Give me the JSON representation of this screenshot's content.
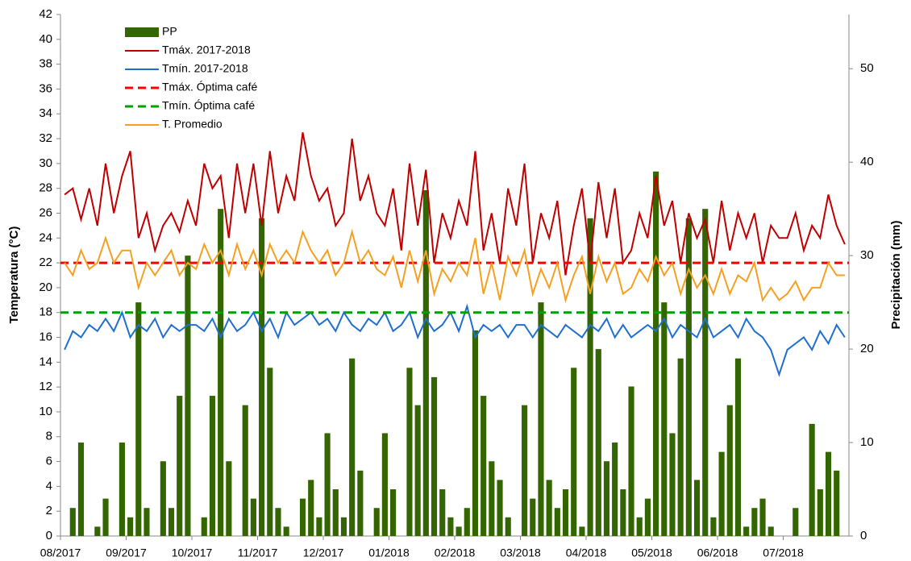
{
  "chart_data": {
    "type": "combo",
    "y_label": "Temperatura (°C)",
    "y2_label": "Precipitación (mm)",
    "ylim": [
      0,
      42
    ],
    "yticks": [
      0,
      2,
      4,
      6,
      8,
      10,
      12,
      14,
      16,
      18,
      20,
      22,
      24,
      26,
      28,
      30,
      32,
      34,
      36,
      38,
      40,
      42
    ],
    "y2lim": [
      0,
      55.8
    ],
    "y2ticks": [
      0,
      10,
      20,
      30,
      40,
      50
    ],
    "legend": "top-left",
    "categories": [
      "08/2017",
      null,
      null,
      null,
      null,
      null,
      null,
      null,
      "09/2017",
      null,
      null,
      null,
      null,
      null,
      null,
      null,
      "10/2017",
      null,
      null,
      null,
      null,
      null,
      null,
      null,
      "11/2017",
      null,
      null,
      null,
      null,
      null,
      null,
      null,
      "12/2017",
      null,
      null,
      null,
      null,
      null,
      null,
      null,
      "01/2018",
      null,
      null,
      null,
      null,
      null,
      null,
      null,
      "02/2018",
      null,
      null,
      null,
      null,
      null,
      null,
      null,
      "03/2018",
      null,
      null,
      null,
      null,
      null,
      null,
      null,
      "04/2018",
      null,
      null,
      null,
      null,
      null,
      null,
      null,
      "05/2018",
      null,
      null,
      null,
      null,
      null,
      null,
      null,
      "06/2018",
      null,
      null,
      null,
      null,
      null,
      null,
      null,
      "07/2018",
      null,
      null,
      null,
      null,
      null,
      null,
      null
    ],
    "series": [
      {
        "name": "PP",
        "type": "bar",
        "axis": "y2",
        "color": "#336600",
        "values": [
          0,
          3,
          10,
          0,
          1,
          4,
          0,
          10,
          2,
          25,
          3,
          0,
          8,
          3,
          15,
          30,
          0,
          2,
          15,
          35,
          8,
          0,
          14,
          4,
          34,
          18,
          3,
          1,
          0,
          4,
          6,
          2,
          11,
          5,
          2,
          19,
          7,
          0,
          3,
          11,
          5,
          0,
          18,
          14,
          37,
          17,
          5,
          2,
          1,
          3,
          22,
          15,
          8,
          6,
          2,
          0,
          14,
          4,
          25,
          6,
          3,
          5,
          18,
          1,
          34,
          20,
          8,
          10,
          5,
          16,
          2,
          4,
          39,
          25,
          11,
          19,
          34,
          6,
          35,
          2,
          9,
          14,
          19,
          1,
          3,
          4,
          1,
          0,
          0,
          3,
          0,
          12,
          5,
          9,
          7,
          0
        ]
      },
      {
        "name": "Tmáx. 2017-2018",
        "type": "line",
        "color": "#c00000",
        "values": [
          27.5,
          28,
          25.5,
          28,
          25,
          30,
          26,
          29,
          31,
          24,
          26,
          23,
          25,
          26,
          24.5,
          27,
          25,
          30,
          28,
          29,
          24,
          30,
          26,
          30,
          25,
          31,
          26,
          29,
          27,
          32.5,
          29,
          27,
          28,
          25,
          26,
          32,
          27,
          29,
          26,
          25,
          28,
          23,
          30,
          25,
          29.5,
          22,
          26,
          24,
          27,
          25,
          31,
          23,
          26,
          22,
          28,
          25,
          30,
          22,
          26,
          24,
          27,
          21,
          25,
          28,
          22,
          28.5,
          24,
          28,
          22,
          23,
          26,
          24,
          29,
          25,
          27,
          22,
          26,
          24,
          25.5,
          22,
          27,
          23,
          26,
          24,
          26,
          22,
          25,
          24,
          24,
          26,
          23,
          25,
          24,
          27.5,
          25,
          23.5
        ]
      },
      {
        "name": "Tmín. 2017-2018",
        "type": "line",
        "color": "#1f6fd0",
        "values": [
          15,
          16.5,
          16,
          17,
          16.5,
          17.5,
          16.5,
          18,
          16,
          17,
          16.5,
          17.5,
          16,
          17,
          16.5,
          17,
          17,
          16.5,
          17.5,
          16,
          17.5,
          16.5,
          17,
          18,
          16.5,
          17.5,
          16,
          18,
          17,
          17.5,
          18,
          17,
          17.5,
          16.5,
          18,
          17,
          16.5,
          17.5,
          17,
          18,
          16.5,
          17,
          18,
          16,
          17.5,
          16.5,
          17,
          18,
          16.5,
          18.5,
          16,
          17,
          16.5,
          17,
          16,
          17,
          17,
          16,
          17,
          16.5,
          16,
          17,
          16.5,
          16,
          17,
          16.5,
          17.5,
          16,
          17,
          16,
          16.5,
          17,
          16.5,
          17.5,
          16,
          17,
          16.5,
          16,
          17.5,
          16,
          16.5,
          17,
          16,
          17.5,
          16.5,
          16,
          15,
          13,
          15,
          15.5,
          16,
          15,
          16.5,
          15.5,
          17,
          16
        ]
      },
      {
        "name": "Tmáx. Óptima café",
        "type": "hline",
        "color": "#ff0000",
        "value": 22
      },
      {
        "name": "Tmín. Óptima café",
        "type": "hline",
        "color": "#00a000",
        "value": 18
      },
      {
        "name": "T. Promedio",
        "type": "line",
        "color": "#f5a020",
        "values": [
          22,
          21,
          23,
          21.5,
          22,
          24,
          22,
          23,
          23,
          20,
          22,
          21,
          22,
          23,
          21,
          22,
          21.5,
          23.5,
          22,
          23,
          21,
          23.5,
          21.5,
          23,
          21,
          23.5,
          22,
          23,
          22,
          24.5,
          23,
          22,
          23,
          21,
          22,
          24.5,
          22,
          23,
          21.5,
          21,
          22.5,
          20,
          23,
          20.5,
          23,
          19.5,
          21.5,
          20.5,
          22,
          21,
          24,
          19.5,
          22,
          19,
          22.5,
          21,
          23,
          19.5,
          21.5,
          20,
          22,
          19,
          21,
          22.5,
          19.5,
          22.5,
          20.5,
          22,
          19.5,
          20,
          21.5,
          20.5,
          22.5,
          21,
          22,
          19.5,
          21.5,
          20,
          21,
          19.5,
          21.5,
          19.5,
          21,
          20.5,
          22,
          19,
          20,
          19,
          19.5,
          20.5,
          19,
          20,
          20,
          22,
          21,
          21
        ]
      }
    ]
  }
}
